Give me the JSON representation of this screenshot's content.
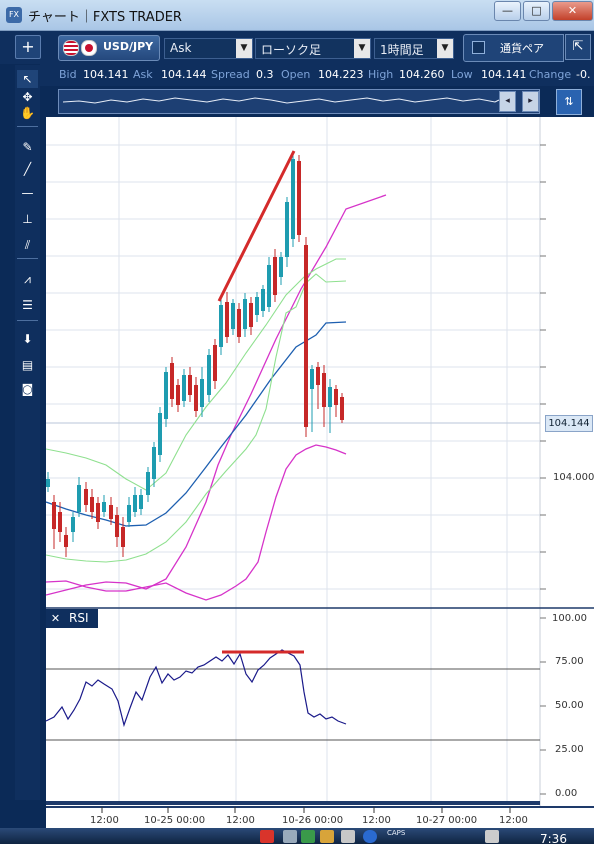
{
  "window": {
    "title": "チャート｜FXTS TRADER",
    "app_icon_text": "FX",
    "minimize_glyph": "—",
    "maximize_glyph": "□",
    "close_glyph": "✕"
  },
  "toolbar": {
    "add_glyph": "+",
    "symbol": "USD/JPY",
    "price_side": "Ask",
    "chart_type": "ローソク足",
    "timeframe": "1時間足",
    "compare_label": "通貨ペア",
    "expand_glyph": "⇱"
  },
  "quote": {
    "bid_label": "Bid",
    "bid": "104.141",
    "ask_label": "Ask",
    "ask": "104.144",
    "spread_label": "Spread",
    "spread": "0.3",
    "open_label": "Open",
    "open": "104.223",
    "high_label": "High",
    "high": "104.260",
    "low_label": "Low",
    "low": "104.141",
    "change_label": "Change",
    "change": "-0."
  },
  "tools": [
    {
      "name": "pointer-icon",
      "glyph": "↖"
    },
    {
      "name": "crosshair-icon",
      "glyph": "✥"
    },
    {
      "name": "hand-icon",
      "glyph": "✋"
    },
    {
      "name": "pencil-icon",
      "glyph": "✎"
    },
    {
      "name": "trendline-icon",
      "glyph": "╱"
    },
    {
      "name": "hline-icon",
      "glyph": "—"
    },
    {
      "name": "vline-icon",
      "glyph": "⊥"
    },
    {
      "name": "channel-icon",
      "glyph": "⫽"
    },
    {
      "name": "fan-icon",
      "glyph": "⩘"
    },
    {
      "name": "fibo-icon",
      "glyph": "☰"
    },
    {
      "name": "download-icon",
      "glyph": "⬇"
    },
    {
      "name": "list-icon",
      "glyph": "▤"
    },
    {
      "name": "camera-icon",
      "glyph": "◙"
    }
  ],
  "colors": {
    "bull_candle": "#1e9cb0",
    "bear_candle": "#c62828",
    "bollinger_outer": "#d633c9",
    "bollinger_inner": "#8fe08f",
    "ema": "#1d5fb0",
    "trendline": "#d42a2a",
    "rsi_line": "#1a1a8a",
    "rsi_marker": "#d42a2a"
  },
  "price_axis": {
    "label_104": "104.000",
    "current": "104.144"
  },
  "rsi_panel": {
    "label": "RSI",
    "close_glyph": "✕",
    "ticks": [
      "100.00",
      "75.00",
      "50.00",
      "25.00",
      "0.00"
    ],
    "levels": [
      70,
      30
    ]
  },
  "time_axis": [
    "12:00",
    "10-25 00:00",
    "12:00",
    "10-26 00:00",
    "12:00",
    "10-27 00:00",
    "12:00"
  ],
  "taskbar": {
    "caps": "CAPS",
    "time": "7:36"
  }
}
